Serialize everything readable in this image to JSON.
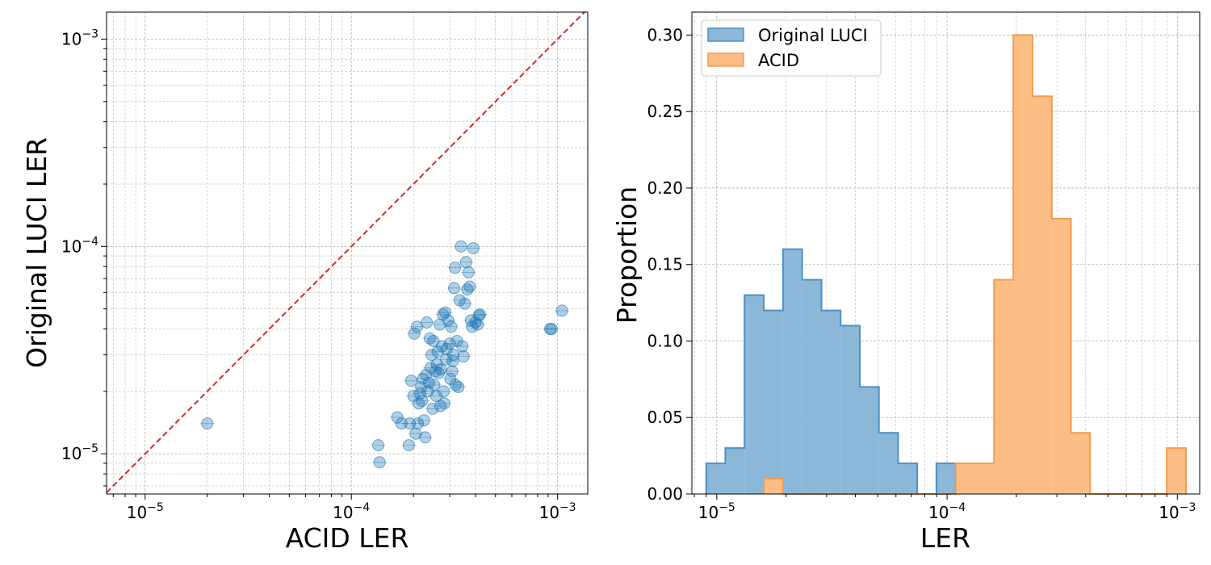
{
  "chart_data": [
    {
      "type": "scatter",
      "title": "",
      "xlabel": "ACID LER",
      "ylabel": "Original LUCI LER",
      "xscale": "log",
      "yscale": "log",
      "xlim": [
        6.5e-06,
        0.0014
      ],
      "ylim": [
        6.4e-06,
        0.00135
      ],
      "xticks": [
        {
          "value": 1e-05,
          "label": "10",
          "exp": "−5"
        },
        {
          "value": 0.0001,
          "label": "10",
          "exp": "−4"
        },
        {
          "value": 0.001,
          "label": "10",
          "exp": "−3"
        }
      ],
      "yticks": [
        {
          "value": 1e-05,
          "label": "10",
          "exp": "−5"
        },
        {
          "value": 0.0001,
          "label": "10",
          "exp": "−4"
        },
        {
          "value": 0.001,
          "label": "10",
          "exp": "−3"
        }
      ],
      "grid": true,
      "marker_color": "#1f77b4",
      "reference_line": {
        "label": "y = x",
        "color": "#d62728",
        "style": "dashed"
      },
      "points": [
        [
          2e-05,
          1.4e-05
        ],
        [
          0.000135,
          1.1e-05
        ],
        [
          0.000137,
          9.1e-06
        ],
        [
          0.00019,
          1.1e-05
        ],
        [
          0.000167,
          1.5e-05
        ],
        [
          0.000175,
          1.4e-05
        ],
        [
          0.000192,
          1.4e-05
        ],
        [
          0.000195,
          2.25e-05
        ],
        [
          0.0002,
          1.9e-05
        ],
        [
          0.000202,
          3.8e-05
        ],
        [
          0.000205,
          1.25e-05
        ],
        [
          0.000208,
          4.1e-05
        ],
        [
          0.00021,
          1.4e-05
        ],
        [
          0.000212,
          1.75e-05
        ],
        [
          0.000215,
          1.95e-05
        ],
        [
          0.000218,
          2.1e-05
        ],
        [
          0.00022,
          1.8e-05
        ],
        [
          0.000222,
          2.3e-05
        ],
        [
          0.000225,
          1.45e-05
        ],
        [
          0.000228,
          1.2e-05
        ],
        [
          0.00023,
          2.4e-05
        ],
        [
          0.000232,
          4.3e-05
        ],
        [
          0.000235,
          2e-05
        ],
        [
          0.000238,
          2.2e-05
        ],
        [
          0.00024,
          3.6e-05
        ],
        [
          0.000242,
          2.6e-05
        ],
        [
          0.000245,
          3e-05
        ],
        [
          0.000248,
          1.65e-05
        ],
        [
          0.00025,
          3.5e-05
        ],
        [
          0.000252,
          2.15e-05
        ],
        [
          0.000255,
          2.5e-05
        ],
        [
          0.000258,
          1.9e-05
        ],
        [
          0.00026,
          2.7e-05
        ],
        [
          0.000262,
          3.1e-05
        ],
        [
          0.000265,
          2.45e-05
        ],
        [
          0.000268,
          4.2e-05
        ],
        [
          0.00027,
          1.7e-05
        ],
        [
          0.000272,
          2.55e-05
        ],
        [
          0.000275,
          3.3e-05
        ],
        [
          0.000278,
          4.7e-05
        ],
        [
          0.00028,
          2e-05
        ],
        [
          0.000282,
          1.75e-05
        ],
        [
          0.000285,
          4.8e-05
        ],
        [
          0.000288,
          2.85e-05
        ],
        [
          0.00029,
          3.2e-05
        ],
        [
          0.000295,
          4.4e-05
        ],
        [
          0.0003,
          3.4e-05
        ],
        [
          0.000302,
          2.3e-05
        ],
        [
          0.000305,
          4.1e-05
        ],
        [
          0.000308,
          2.5e-05
        ],
        [
          0.00031,
          2.8e-05
        ],
        [
          0.000312,
          3e-05
        ],
        [
          0.000315,
          6.3e-05
        ],
        [
          0.000318,
          7.9e-05
        ],
        [
          0.00032,
          2.15e-05
        ],
        [
          0.000325,
          3.5e-05
        ],
        [
          0.00033,
          2.1e-05
        ],
        [
          0.000335,
          5.5e-05
        ],
        [
          0.00034,
          0.0001
        ],
        [
          0.000345,
          3.3e-05
        ],
        [
          0.00035,
          2.95e-05
        ],
        [
          0.000355,
          5.3e-05
        ],
        [
          0.00036,
          8.4e-05
        ],
        [
          0.000365,
          6.2e-05
        ],
        [
          0.00037,
          7.5e-05
        ],
        [
          0.000375,
          6.4e-05
        ],
        [
          0.00038,
          4.4e-05
        ],
        [
          0.000385,
          4.1e-05
        ],
        [
          0.00039,
          9.8e-05
        ],
        [
          0.0004,
          4.3e-05
        ],
        [
          0.00041,
          4.2e-05
        ],
        [
          0.000415,
          4.65e-05
        ],
        [
          0.00042,
          4.7e-05
        ],
        [
          0.00092,
          4e-05
        ],
        [
          0.000935,
          4e-05
        ],
        [
          0.00105,
          4.9e-05
        ]
      ]
    },
    {
      "type": "histogram",
      "title": "",
      "xlabel": "LER",
      "ylabel": "Proportion",
      "xscale": "log",
      "xlim": [
        7.8e-06,
        0.00125
      ],
      "ylim": [
        0,
        0.315
      ],
      "xticks": [
        {
          "value": 1e-05,
          "label": "10",
          "exp": "−5"
        },
        {
          "value": 0.0001,
          "label": "10",
          "exp": "−4"
        },
        {
          "value": 0.001,
          "label": "10",
          "exp": "−3"
        }
      ],
      "yticks": [
        {
          "value": 0.0,
          "label": "0.00"
        },
        {
          "value": 0.05,
          "label": "0.05"
        },
        {
          "value": 0.1,
          "label": "0.10"
        },
        {
          "value": 0.15,
          "label": "0.15"
        },
        {
          "value": 0.2,
          "label": "0.20"
        },
        {
          "value": 0.25,
          "label": "0.25"
        },
        {
          "value": 0.3,
          "label": "0.30"
        }
      ],
      "grid": true,
      "legend_position": "top-left",
      "series": [
        {
          "name": "Original LUCI",
          "fill": "#8bb8d9",
          "stroke": "#4f90c0",
          "bin_edges": [
            9e-06,
            1.09e-05,
            1.32e-05,
            1.6e-05,
            1.94e-05,
            2.35e-05,
            2.85e-05,
            3.45e-05,
            4.18e-05,
            5.06e-05,
            6.13e-05,
            7.42e-05,
            8.99e-05,
            0.000109
          ],
          "values": [
            0.02,
            0.03,
            0.13,
            0.12,
            0.16,
            0.14,
            0.12,
            0.11,
            0.07,
            0.04,
            0.02,
            0.0,
            0.02
          ]
        },
        {
          "name": "ACID",
          "fill": "#fdbe85",
          "stroke": "#f19b51",
          "bin_edges": [
            1.6e-05,
            1.94e-05,
            2.35e-05,
            2.85e-05,
            3.45e-05,
            4.18e-05,
            5.06e-05,
            6.13e-05,
            7.42e-05,
            8.99e-05,
            0.000109,
            0.000132,
            0.00016,
            0.000194,
            0.000235,
            0.000285,
            0.000345,
            0.000418,
            0.000506,
            0.000613,
            0.000742,
            0.000899,
            0.00109
          ],
          "values": [
            0.01,
            0.0,
            0.0,
            0.0,
            0.0,
            0.0,
            0.0,
            0.0,
            0.0,
            0.0,
            0.02,
            0.02,
            0.14,
            0.3,
            0.26,
            0.18,
            0.04,
            0.0,
            0.0,
            0.0,
            0.0,
            0.03
          ]
        }
      ]
    }
  ]
}
